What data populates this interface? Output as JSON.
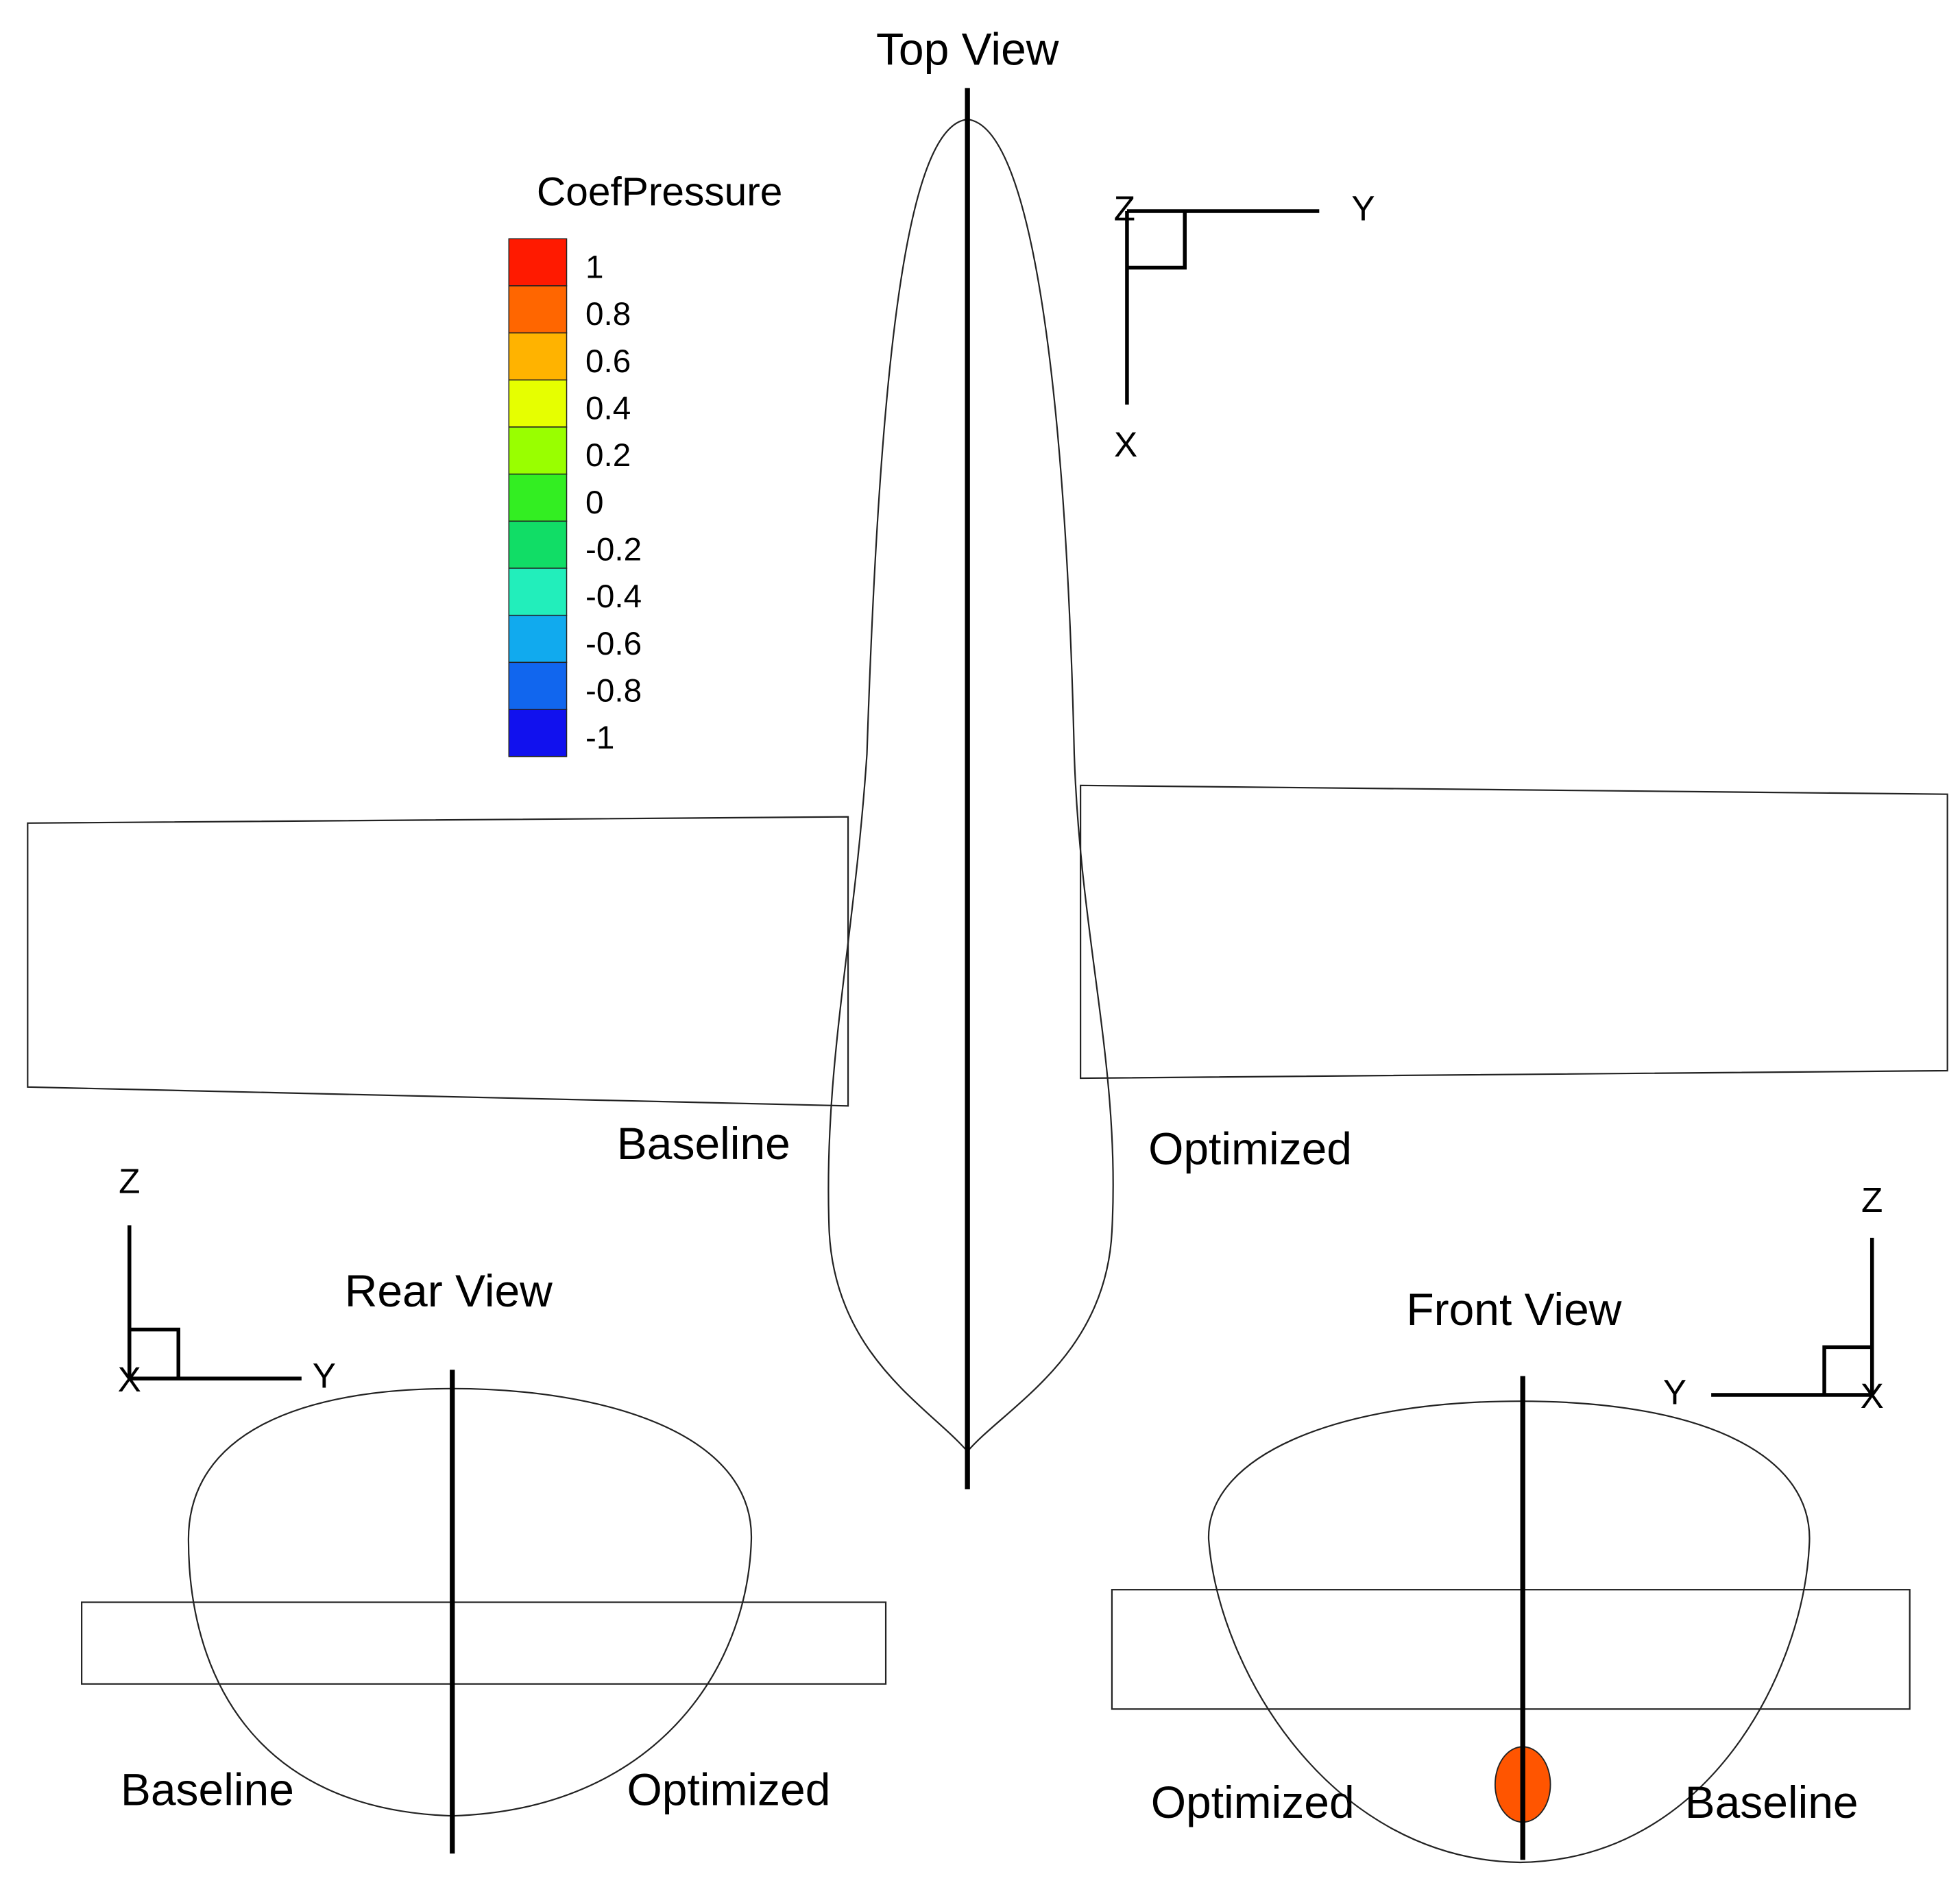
{
  "top_view": {
    "title": "Top View",
    "left_label": "Baseline",
    "right_label": "Optimized",
    "axis_z": "Z",
    "axis_y": "Y",
    "axis_x": "X"
  },
  "rear_view": {
    "title": "Rear View",
    "left_label": "Baseline",
    "right_label": "Optimized",
    "axis_z": "Z",
    "axis_y": "Y",
    "axis_x": "X"
  },
  "front_view": {
    "title": "Front View",
    "left_label": "Optimized",
    "right_label": "Baseline",
    "axis_z": "Z",
    "axis_y": "Y",
    "axis_x": "X"
  },
  "legend": {
    "title": "CoefPressure",
    "labels": [
      1,
      0.8,
      0.6,
      0.4,
      0.2,
      0,
      -0.2,
      -0.4,
      -0.6,
      -0.8,
      -1
    ],
    "colors": [
      "#ff1a00",
      "#ff6600",
      "#ffb300",
      "#e6ff00",
      "#99ff00",
      "#33ee22",
      "#11dd66",
      "#22eebb",
      "#11aaee",
      "#1166ee",
      "#1111ee"
    ]
  }
}
